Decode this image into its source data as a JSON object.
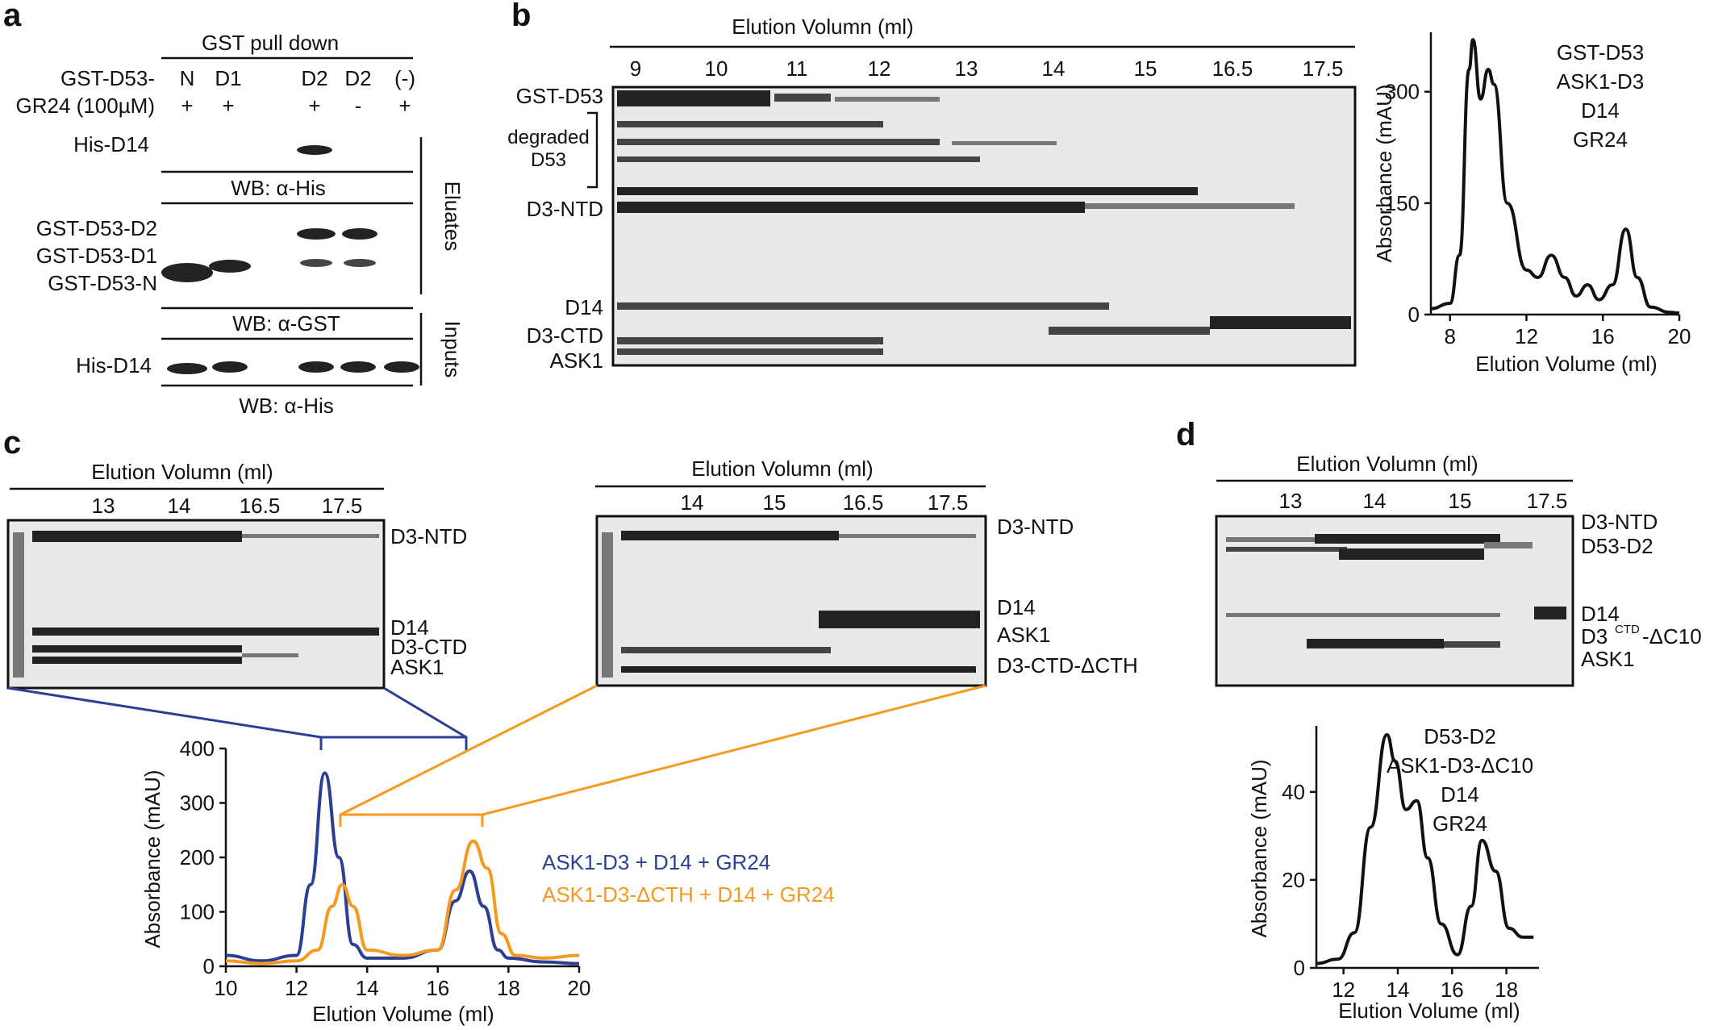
{
  "panels": {
    "a": {
      "label": "a",
      "header": "GST pull down",
      "row1_label": "GST-D53-",
      "row2_label": "GR24 (100µM)",
      "lanes": [
        "N",
        "D1",
        "D2",
        "D2",
        "(-)"
      ],
      "gr24": [
        "+",
        "+",
        "+",
        "-",
        "+"
      ],
      "blot_labels": [
        "His-D14",
        "GST-D53-D2",
        "GST-D53-D1",
        "GST-D53-N",
        "His-D14"
      ],
      "wb_labels": [
        "WB: α-His",
        "WB: α-GST",
        "WB: α-His"
      ],
      "side_labels": [
        "Eluates",
        "Inputs"
      ]
    },
    "b": {
      "label": "b",
      "header": "Elution Volumn (ml)",
      "fractions": [
        "9",
        "10",
        "11",
        "12",
        "13",
        "14",
        "15",
        "16.5",
        "17.5"
      ],
      "band_labels": [
        "GST-D53",
        "degraded",
        "D53",
        "D3-NTD",
        "D14",
        "D3-CTD",
        "ASK1"
      ],
      "legend": [
        "GST-D53",
        "ASK1-D3",
        "D14",
        "GR24"
      ]
    },
    "c": {
      "label": "c",
      "left_gel": {
        "header": "Elution Volumn (ml)",
        "fractions": [
          "13",
          "14",
          "16.5",
          "17.5"
        ],
        "band_labels": [
          "D3-NTD",
          "D14",
          "D3-CTD",
          "ASK1"
        ]
      },
      "right_gel": {
        "header": "Elution Volumn (ml)",
        "fractions": [
          "14",
          "15",
          "16.5",
          "17.5"
        ],
        "band_labels": [
          "D3-NTD",
          "D14",
          "ASK1",
          "D3-CTD-ΔCTH"
        ]
      },
      "legend": [
        "ASK1-D3 + D14 + GR24",
        "ASK1-D3-ΔCTH + D14 + GR24"
      ]
    },
    "d": {
      "label": "d",
      "header": "Elution Volumn (ml)",
      "fractions": [
        "13",
        "14",
        "15",
        "17.5"
      ],
      "band_labels": [
        "D3-NTD",
        "D53-D2",
        "D14",
        "D3",
        "CTD",
        "-ΔC10",
        "ASK1"
      ],
      "legend": [
        "D53-D2",
        "ASK1-D3-ΔC10",
        "D14",
        "GR24"
      ]
    }
  },
  "chart_data": [
    {
      "type": "line",
      "panel": "b",
      "xlabel": "Elution Volume (ml)",
      "ylabel": "Absorbance (mAU)",
      "xlim": [
        7,
        20
      ],
      "ylim": [
        0,
        380
      ],
      "xticks": [
        "8",
        "12",
        "16",
        "20"
      ],
      "yticks": [
        "0",
        "150",
        "300"
      ],
      "series": [
        {
          "color": "#111111",
          "x": [
            7,
            8,
            8.5,
            9,
            9.2,
            9.6,
            10,
            10.3,
            11,
            12,
            12.6,
            13.3,
            14,
            14.6,
            15.2,
            15.8,
            16.5,
            17.2,
            17.8,
            18.5,
            19.5,
            20
          ],
          "y": [
            8,
            15,
            80,
            330,
            370,
            290,
            330,
            310,
            150,
            60,
            50,
            80,
            50,
            25,
            40,
            20,
            40,
            115,
            50,
            10,
            3,
            2
          ]
        }
      ]
    },
    {
      "type": "line",
      "panel": "c",
      "xlabel": "Elution Volume (ml)",
      "ylabel": "Absorbance (mAU)",
      "xlim": [
        10,
        20
      ],
      "ylim": [
        0,
        400
      ],
      "xticks": [
        "10",
        "12",
        "14",
        "16",
        "18",
        "20"
      ],
      "yticks": [
        "0",
        "100",
        "200",
        "300",
        "400"
      ],
      "series": [
        {
          "name": "ASK1-D3 + D14 + GR24",
          "color": "#2b3f95",
          "x": [
            10,
            11,
            12,
            12.4,
            12.8,
            13.2,
            13.6,
            14,
            15,
            16,
            16.5,
            16.9,
            17.3,
            17.7,
            18,
            19,
            20
          ],
          "y": [
            20,
            10,
            20,
            150,
            355,
            200,
            40,
            15,
            15,
            30,
            120,
            175,
            110,
            30,
            15,
            8,
            5
          ]
        },
        {
          "name": "ASK1-D3-ΔCTH + D14 + GR24",
          "color": "#f39a1f",
          "x": [
            10,
            11,
            12,
            12.6,
            13,
            13.3,
            13.6,
            14,
            15,
            16,
            16.5,
            17,
            17.4,
            17.8,
            18.2,
            19,
            20
          ],
          "y": [
            10,
            5,
            10,
            30,
            110,
            150,
            110,
            30,
            20,
            30,
            140,
            230,
            180,
            60,
            20,
            15,
            20
          ]
        }
      ]
    },
    {
      "type": "line",
      "panel": "d",
      "xlabel": "Elution Volume (ml)",
      "ylabel": "Absorbance (mAU)",
      "xlim": [
        11,
        19.2
      ],
      "ylim": [
        0,
        55
      ],
      "xticks": [
        "12",
        "14",
        "16",
        "18"
      ],
      "yticks": [
        "0",
        "20",
        "40"
      ],
      "series": [
        {
          "color": "#111111",
          "x": [
            11,
            11.8,
            12.4,
            13,
            13.6,
            13.9,
            14.3,
            14.7,
            15.1,
            15.6,
            16.2,
            16.7,
            17.1,
            17.6,
            18.1,
            18.6,
            19
          ],
          "y": [
            1,
            2,
            8,
            32,
            53,
            47,
            36,
            38,
            25,
            10,
            3,
            14,
            29,
            22,
            9,
            7,
            7
          ]
        }
      ]
    }
  ]
}
